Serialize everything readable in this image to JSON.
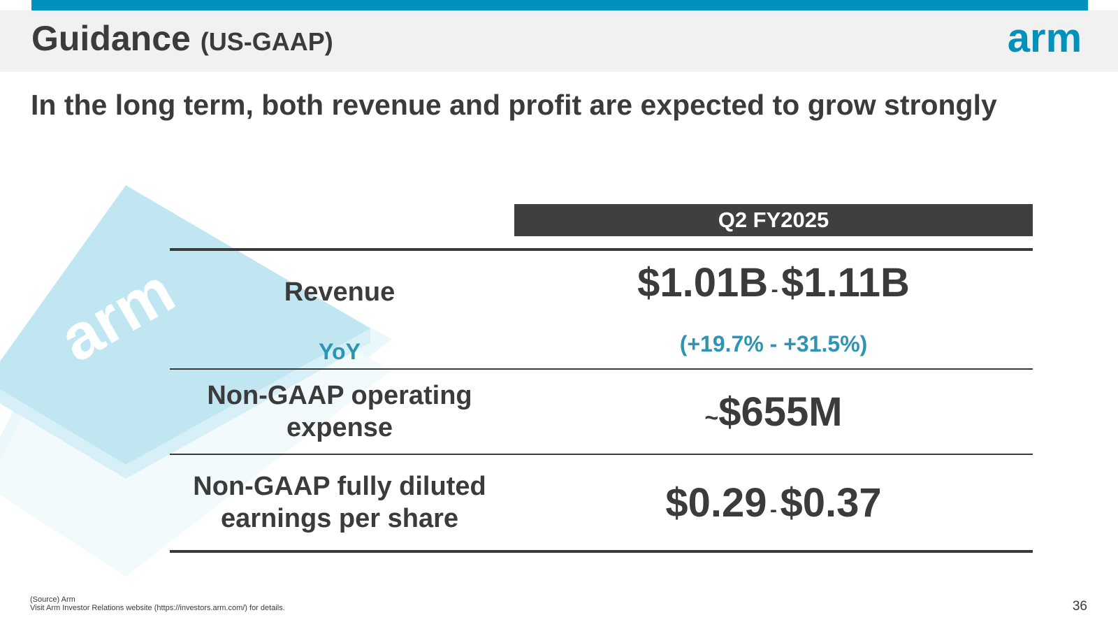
{
  "header": {
    "title": "Guidance",
    "title_suffix": "(US-GAAP)",
    "logo_text": "arm",
    "logo_color": "#0091bd",
    "accent_color": "#0091bd"
  },
  "subtitle": "In the long term, both revenue and profit are expected to grow strongly",
  "decoration": {
    "chip_logo_text": "arm"
  },
  "table": {
    "column_header": "Q2 FY2025",
    "rows": [
      {
        "label": "Revenue",
        "low": "$1.01B",
        "separator": "-",
        "high": "$1.11B"
      },
      {
        "label": "YoY",
        "range": "(+19.7% - +31.5%)"
      },
      {
        "label_line1": "Non-GAAP operating",
        "label_line2": "expense",
        "prefix": "~",
        "value": "$655M"
      },
      {
        "label_line1": "Non-GAAP fully diluted",
        "label_line2": "earnings per share",
        "low": "$0.29",
        "separator": "-",
        "high": "$0.37"
      }
    ]
  },
  "footer": {
    "source": "(Source) Arm",
    "note": "Visit Arm Investor Relations website (https://investors.arm.com/) for details.",
    "page_number": "36"
  }
}
